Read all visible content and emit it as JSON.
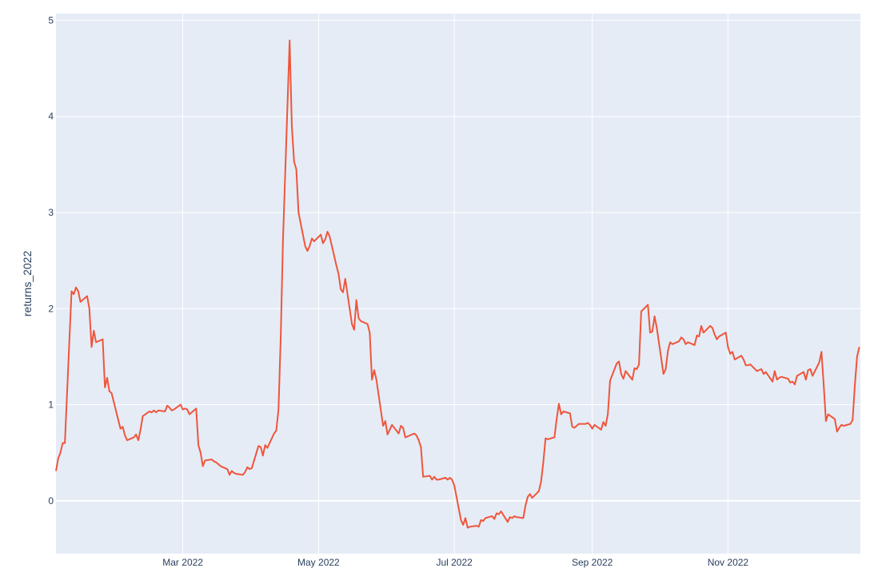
{
  "colors": {
    "plot_background": "#e5ecf6",
    "gridline": "#ffffff",
    "series_line": "#ef553b",
    "text": "#2a3f5f"
  },
  "chart_data": {
    "type": "line",
    "title": "",
    "xlabel": "",
    "ylabel": "returns_2022",
    "grid": true,
    "xlim": [
      "2022-01-03",
      "2022-12-30"
    ],
    "ylim": [
      -0.55,
      5.07
    ],
    "x_ticks": [
      {
        "date": "2022-03-01",
        "label": "Mar 2022"
      },
      {
        "date": "2022-05-01",
        "label": "May 2022"
      },
      {
        "date": "2022-07-01",
        "label": "Jul 2022"
      },
      {
        "date": "2022-09-01",
        "label": "Sep 2022"
      },
      {
        "date": "2022-11-01",
        "label": "Nov 2022"
      }
    ],
    "y_ticks": [
      0,
      1,
      2,
      3,
      4,
      5
    ],
    "series": [
      {
        "points": [
          [
            "2022-01-03",
            0.31
          ],
          [
            "2022-01-04",
            0.44
          ],
          [
            "2022-01-05",
            0.5
          ],
          [
            "2022-01-06",
            0.6
          ],
          [
            "2022-01-07",
            0.6
          ],
          [
            "2022-01-10",
            2.18
          ],
          [
            "2022-01-11",
            2.15
          ],
          [
            "2022-01-12",
            2.22
          ],
          [
            "2022-01-13",
            2.18
          ],
          [
            "2022-01-14",
            2.07
          ],
          [
            "2022-01-17",
            2.13
          ],
          [
            "2022-01-18",
            2.0
          ],
          [
            "2022-01-19",
            1.6
          ],
          [
            "2022-01-20",
            1.77
          ],
          [
            "2022-01-21",
            1.65
          ],
          [
            "2022-01-24",
            1.68
          ],
          [
            "2022-01-25",
            1.18
          ],
          [
            "2022-01-26",
            1.28
          ],
          [
            "2022-01-27",
            1.14
          ],
          [
            "2022-01-28",
            1.12
          ],
          [
            "2022-01-31",
            0.84
          ],
          [
            "2022-02-01",
            0.75
          ],
          [
            "2022-02-02",
            0.77
          ],
          [
            "2022-02-03",
            0.68
          ],
          [
            "2022-02-04",
            0.63
          ],
          [
            "2022-02-07",
            0.66
          ],
          [
            "2022-02-08",
            0.69
          ],
          [
            "2022-02-09",
            0.63
          ],
          [
            "2022-02-10",
            0.74
          ],
          [
            "2022-02-11",
            0.88
          ],
          [
            "2022-02-14",
            0.93
          ],
          [
            "2022-02-15",
            0.92
          ],
          [
            "2022-02-16",
            0.94
          ],
          [
            "2022-02-17",
            0.92
          ],
          [
            "2022-02-18",
            0.94
          ],
          [
            "2022-02-21",
            0.93
          ],
          [
            "2022-02-22",
            0.99
          ],
          [
            "2022-02-23",
            0.97
          ],
          [
            "2022-02-24",
            0.94
          ],
          [
            "2022-02-25",
            0.95
          ],
          [
            "2022-02-28",
            1.0
          ],
          [
            "2022-03-01",
            0.95
          ],
          [
            "2022-03-02",
            0.96
          ],
          [
            "2022-03-03",
            0.95
          ],
          [
            "2022-03-04",
            0.9
          ],
          [
            "2022-03-07",
            0.96
          ],
          [
            "2022-03-08",
            0.58
          ],
          [
            "2022-03-09",
            0.5
          ],
          [
            "2022-03-10",
            0.36
          ],
          [
            "2022-03-11",
            0.42
          ],
          [
            "2022-03-14",
            0.43
          ],
          [
            "2022-03-15",
            0.41
          ],
          [
            "2022-03-16",
            0.4
          ],
          [
            "2022-03-17",
            0.38
          ],
          [
            "2022-03-18",
            0.36
          ],
          [
            "2022-03-21",
            0.33
          ],
          [
            "2022-03-22",
            0.27
          ],
          [
            "2022-03-23",
            0.31
          ],
          [
            "2022-03-24",
            0.29
          ],
          [
            "2022-03-25",
            0.28
          ],
          [
            "2022-03-28",
            0.27
          ],
          [
            "2022-03-29",
            0.3
          ],
          [
            "2022-03-30",
            0.35
          ],
          [
            "2022-03-31",
            0.33
          ],
          [
            "2022-04-01",
            0.34
          ],
          [
            "2022-04-04",
            0.57
          ],
          [
            "2022-04-05",
            0.56
          ],
          [
            "2022-04-06",
            0.47
          ],
          [
            "2022-04-07",
            0.58
          ],
          [
            "2022-04-08",
            0.55
          ],
          [
            "2022-04-11",
            0.7
          ],
          [
            "2022-04-12",
            0.73
          ],
          [
            "2022-04-13",
            0.95
          ],
          [
            "2022-04-14",
            1.7
          ],
          [
            "2022-04-15",
            2.7
          ],
          [
            "2022-04-18",
            4.79
          ],
          [
            "2022-04-19",
            3.9
          ],
          [
            "2022-04-20",
            3.53
          ],
          [
            "2022-04-21",
            3.45
          ],
          [
            "2022-04-22",
            3.0
          ],
          [
            "2022-04-25",
            2.65
          ],
          [
            "2022-04-26",
            2.6
          ],
          [
            "2022-04-27",
            2.65
          ],
          [
            "2022-04-28",
            2.73
          ],
          [
            "2022-04-29",
            2.7
          ],
          [
            "2022-05-02",
            2.77
          ],
          [
            "2022-05-03",
            2.68
          ],
          [
            "2022-05-04",
            2.72
          ],
          [
            "2022-05-05",
            2.8
          ],
          [
            "2022-05-06",
            2.75
          ],
          [
            "2022-05-09",
            2.45
          ],
          [
            "2022-05-10",
            2.36
          ],
          [
            "2022-05-11",
            2.2
          ],
          [
            "2022-05-12",
            2.17
          ],
          [
            "2022-05-13",
            2.31
          ],
          [
            "2022-05-16",
            1.84
          ],
          [
            "2022-05-17",
            1.78
          ],
          [
            "2022-05-18",
            2.09
          ],
          [
            "2022-05-19",
            1.9
          ],
          [
            "2022-05-20",
            1.87
          ],
          [
            "2022-05-23",
            1.84
          ],
          [
            "2022-05-24",
            1.75
          ],
          [
            "2022-05-25",
            1.26
          ],
          [
            "2022-05-26",
            1.36
          ],
          [
            "2022-05-27",
            1.26
          ],
          [
            "2022-05-30",
            0.78
          ],
          [
            "2022-05-31",
            0.83
          ],
          [
            "2022-06-01",
            0.69
          ],
          [
            "2022-06-02",
            0.74
          ],
          [
            "2022-06-03",
            0.79
          ],
          [
            "2022-06-06",
            0.7
          ],
          [
            "2022-06-07",
            0.78
          ],
          [
            "2022-06-08",
            0.76
          ],
          [
            "2022-06-09",
            0.66
          ],
          [
            "2022-06-10",
            0.67
          ],
          [
            "2022-06-13",
            0.7
          ],
          [
            "2022-06-14",
            0.68
          ],
          [
            "2022-06-15",
            0.63
          ],
          [
            "2022-06-16",
            0.56
          ],
          [
            "2022-06-17",
            0.25
          ],
          [
            "2022-06-20",
            0.26
          ],
          [
            "2022-06-21",
            0.22
          ],
          [
            "2022-06-22",
            0.25
          ],
          [
            "2022-06-23",
            0.22
          ],
          [
            "2022-06-24",
            0.22
          ],
          [
            "2022-06-27",
            0.24
          ],
          [
            "2022-06-28",
            0.22
          ],
          [
            "2022-06-29",
            0.24
          ],
          [
            "2022-06-30",
            0.22
          ],
          [
            "2022-07-01",
            0.16
          ],
          [
            "2022-07-04",
            -0.2
          ],
          [
            "2022-07-05",
            -0.25
          ],
          [
            "2022-07-06",
            -0.18
          ],
          [
            "2022-07-07",
            -0.28
          ],
          [
            "2022-07-08",
            -0.27
          ],
          [
            "2022-07-11",
            -0.26
          ],
          [
            "2022-07-12",
            -0.27
          ],
          [
            "2022-07-13",
            -0.2
          ],
          [
            "2022-07-14",
            -0.21
          ],
          [
            "2022-07-15",
            -0.18
          ],
          [
            "2022-07-18",
            -0.16
          ],
          [
            "2022-07-19",
            -0.19
          ],
          [
            "2022-07-20",
            -0.13
          ],
          [
            "2022-07-21",
            -0.14
          ],
          [
            "2022-07-22",
            -0.11
          ],
          [
            "2022-07-25",
            -0.22
          ],
          [
            "2022-07-26",
            -0.17
          ],
          [
            "2022-07-27",
            -0.18
          ],
          [
            "2022-07-28",
            -0.16
          ],
          [
            "2022-07-29",
            -0.17
          ],
          [
            "2022-08-01",
            -0.18
          ],
          [
            "2022-08-02",
            -0.05
          ],
          [
            "2022-08-03",
            0.04
          ],
          [
            "2022-08-04",
            0.07
          ],
          [
            "2022-08-05",
            0.03
          ],
          [
            "2022-08-08",
            0.1
          ],
          [
            "2022-08-09",
            0.2
          ],
          [
            "2022-08-10",
            0.4
          ],
          [
            "2022-08-11",
            0.65
          ],
          [
            "2022-08-12",
            0.64
          ],
          [
            "2022-08-15",
            0.66
          ],
          [
            "2022-08-16",
            0.85
          ],
          [
            "2022-08-17",
            1.01
          ],
          [
            "2022-08-18",
            0.9
          ],
          [
            "2022-08-19",
            0.93
          ],
          [
            "2022-08-22",
            0.91
          ],
          [
            "2022-08-23",
            0.77
          ],
          [
            "2022-08-24",
            0.76
          ],
          [
            "2022-08-25",
            0.78
          ],
          [
            "2022-08-26",
            0.8
          ],
          [
            "2022-08-29",
            0.8
          ],
          [
            "2022-08-30",
            0.81
          ],
          [
            "2022-08-31",
            0.79
          ],
          [
            "2022-09-01",
            0.75
          ],
          [
            "2022-09-02",
            0.79
          ],
          [
            "2022-09-05",
            0.74
          ],
          [
            "2022-09-06",
            0.82
          ],
          [
            "2022-09-07",
            0.78
          ],
          [
            "2022-09-08",
            0.9
          ],
          [
            "2022-09-09",
            1.25
          ],
          [
            "2022-09-12",
            1.43
          ],
          [
            "2022-09-13",
            1.45
          ],
          [
            "2022-09-14",
            1.32
          ],
          [
            "2022-09-15",
            1.27
          ],
          [
            "2022-09-16",
            1.35
          ],
          [
            "2022-09-19",
            1.26
          ],
          [
            "2022-09-20",
            1.38
          ],
          [
            "2022-09-21",
            1.37
          ],
          [
            "2022-09-22",
            1.42
          ],
          [
            "2022-09-23",
            1.97
          ],
          [
            "2022-09-26",
            2.04
          ],
          [
            "2022-09-27",
            1.75
          ],
          [
            "2022-09-28",
            1.76
          ],
          [
            "2022-09-29",
            1.92
          ],
          [
            "2022-09-30",
            1.8
          ],
          [
            "2022-10-03",
            1.32
          ],
          [
            "2022-10-04",
            1.37
          ],
          [
            "2022-10-05",
            1.56
          ],
          [
            "2022-10-06",
            1.65
          ],
          [
            "2022-10-07",
            1.63
          ],
          [
            "2022-10-10",
            1.66
          ],
          [
            "2022-10-11",
            1.7
          ],
          [
            "2022-10-12",
            1.68
          ],
          [
            "2022-10-13",
            1.63
          ],
          [
            "2022-10-14",
            1.65
          ],
          [
            "2022-10-17",
            1.62
          ],
          [
            "2022-10-18",
            1.72
          ],
          [
            "2022-10-19",
            1.71
          ],
          [
            "2022-10-20",
            1.82
          ],
          [
            "2022-10-21",
            1.75
          ],
          [
            "2022-10-24",
            1.82
          ],
          [
            "2022-10-25",
            1.8
          ],
          [
            "2022-10-26",
            1.73
          ],
          [
            "2022-10-27",
            1.68
          ],
          [
            "2022-10-28",
            1.71
          ],
          [
            "2022-10-31",
            1.75
          ],
          [
            "2022-11-01",
            1.6
          ],
          [
            "2022-11-02",
            1.53
          ],
          [
            "2022-11-03",
            1.55
          ],
          [
            "2022-11-04",
            1.47
          ],
          [
            "2022-11-07",
            1.51
          ],
          [
            "2022-11-08",
            1.47
          ],
          [
            "2022-11-09",
            1.41
          ],
          [
            "2022-11-10",
            1.41
          ],
          [
            "2022-11-11",
            1.42
          ],
          [
            "2022-11-14",
            1.35
          ],
          [
            "2022-11-15",
            1.36
          ],
          [
            "2022-11-16",
            1.37
          ],
          [
            "2022-11-17",
            1.32
          ],
          [
            "2022-11-18",
            1.34
          ],
          [
            "2022-11-21",
            1.24
          ],
          [
            "2022-11-22",
            1.35
          ],
          [
            "2022-11-23",
            1.26
          ],
          [
            "2022-11-24",
            1.28
          ],
          [
            "2022-11-25",
            1.29
          ],
          [
            "2022-11-28",
            1.27
          ],
          [
            "2022-11-29",
            1.23
          ],
          [
            "2022-11-30",
            1.24
          ],
          [
            "2022-12-01",
            1.21
          ],
          [
            "2022-12-02",
            1.3
          ],
          [
            "2022-12-05",
            1.34
          ],
          [
            "2022-12-06",
            1.26
          ],
          [
            "2022-12-07",
            1.36
          ],
          [
            "2022-12-08",
            1.37
          ],
          [
            "2022-12-09",
            1.3
          ],
          [
            "2022-12-12",
            1.44
          ],
          [
            "2022-12-13",
            1.55
          ],
          [
            "2022-12-14",
            1.21
          ],
          [
            "2022-12-15",
            0.83
          ],
          [
            "2022-12-16",
            0.9
          ],
          [
            "2022-12-19",
            0.85
          ],
          [
            "2022-12-20",
            0.72
          ],
          [
            "2022-12-21",
            0.76
          ],
          [
            "2022-12-22",
            0.79
          ],
          [
            "2022-12-23",
            0.78
          ],
          [
            "2022-12-26",
            0.8
          ],
          [
            "2022-12-27",
            0.84
          ],
          [
            "2022-12-28",
            1.2
          ],
          [
            "2022-12-29",
            1.5
          ],
          [
            "2022-12-30",
            1.6
          ]
        ]
      }
    ]
  }
}
